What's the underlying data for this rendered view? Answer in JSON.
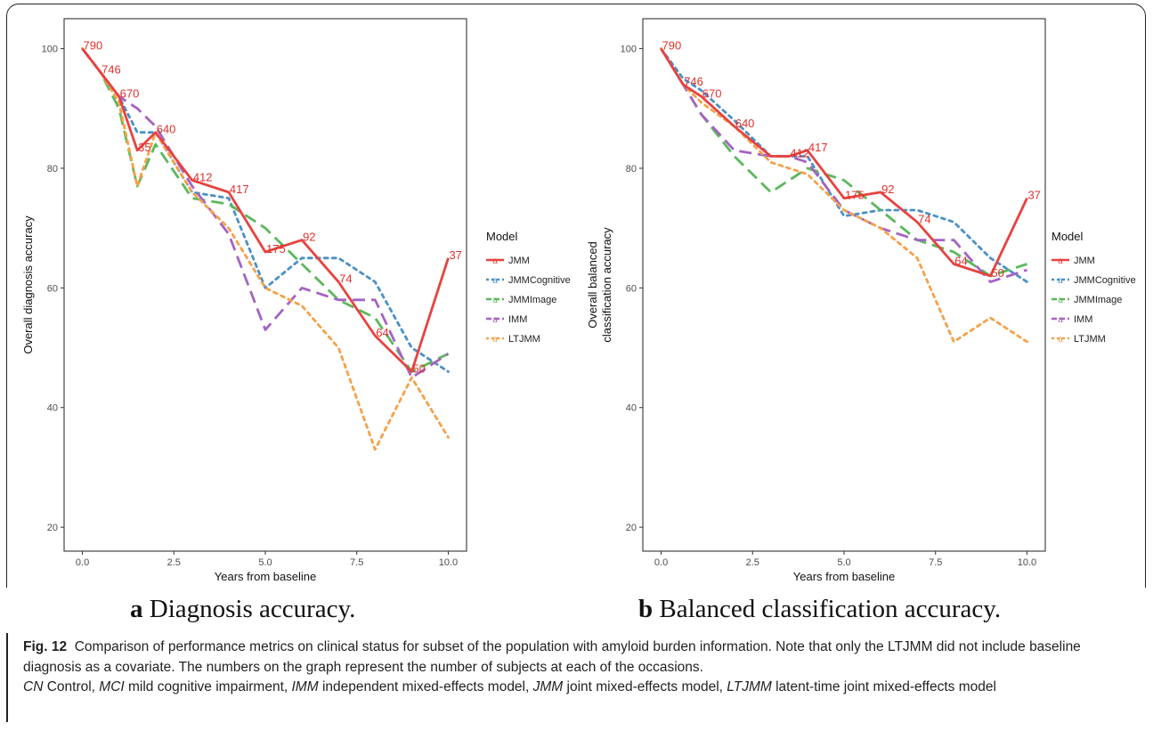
{
  "figure": {
    "number_label": "Fig. 12",
    "caption_text": "Comparison of performance metrics on clinical status for subset of the population with amyloid burden information. Note that only the LTJMM did not include baseline diagnosis as a covariate. The numbers on the graph represent the number of subjects at each of the occasions.",
    "abbreviations": [
      {
        "abbr": "CN",
        "text": " Control, "
      },
      {
        "abbr": "MCI",
        "text": " mild cognitive impairment, "
      },
      {
        "abbr": "IMM",
        "text": " independent mixed-effects model, "
      },
      {
        "abbr": "JMM",
        "text": " joint mixed-effects model, "
      },
      {
        "abbr": "LTJMM",
        "text": " latent-time joint mixed-effects model"
      }
    ]
  },
  "subcaptions": {
    "a": {
      "letter": "a",
      "text": " Diagnosis accuracy."
    },
    "b": {
      "letter": "b",
      "text": " Balanced classification accuracy."
    }
  },
  "legend": {
    "title": "Model",
    "key_glyph": "a"
  },
  "chart_data": [
    {
      "type": "line",
      "panel": "a",
      "xlabel": "Years from baseline",
      "ylabel": "Overall diagnosis accuracy",
      "xlim": [
        -0.5,
        10.5
      ],
      "ylim": [
        16,
        105
      ],
      "xticks": [
        0.0,
        2.5,
        5.0,
        7.5,
        10.0
      ],
      "xtick_labels": [
        "0.0",
        "2.5",
        "5.0",
        "7.5",
        "10.0"
      ],
      "yticks": [
        20,
        40,
        60,
        80,
        100
      ],
      "ytick_labels": [
        "20",
        "40",
        "60",
        "80",
        "100"
      ],
      "grid": false,
      "legend_position": "right",
      "series": [
        {
          "name": "JMM",
          "color": "#e8423f",
          "dash": "solid",
          "x": [
            0,
            0.5,
            1,
            1.5,
            2,
            3,
            4,
            5,
            6,
            7,
            8,
            9,
            10
          ],
          "y": [
            100,
            96,
            92,
            83,
            86,
            78,
            76,
            66,
            68,
            61,
            52,
            46,
            65
          ]
        },
        {
          "name": "JMMCognitive",
          "color": "#4a90c8",
          "dash": "dot",
          "x": [
            0,
            0.5,
            1,
            1.5,
            2,
            3,
            4,
            5,
            6,
            7,
            8,
            9,
            10
          ],
          "y": [
            100,
            96,
            92,
            86,
            86,
            76,
            75,
            60,
            65,
            65,
            61,
            50,
            46
          ]
        },
        {
          "name": "JMMImage",
          "color": "#5cb85c",
          "dash": "longdash",
          "x": [
            0,
            0.5,
            1,
            1.5,
            2,
            3,
            4,
            5,
            6,
            7,
            8,
            9,
            10
          ],
          "y": [
            100,
            96,
            90,
            77,
            84,
            75,
            74,
            70,
            64,
            58,
            55,
            46,
            49
          ]
        },
        {
          "name": "IMM",
          "color": "#a463c4",
          "dash": "longdash",
          "x": [
            0,
            0.5,
            1,
            1.5,
            2,
            3,
            4,
            5,
            6,
            7,
            8,
            9,
            10
          ],
          "y": [
            100,
            96,
            92,
            90,
            87,
            77,
            69,
            53,
            60,
            58,
            58,
            45,
            49
          ]
        },
        {
          "name": "LTJMM",
          "color": "#f5a14a",
          "dash": "dot",
          "x": [
            0,
            0.5,
            1,
            1.5,
            2,
            3,
            4,
            5,
            6,
            7,
            8,
            9,
            10
          ],
          "y": [
            100,
            96,
            91,
            77,
            86,
            76,
            70,
            60,
            57,
            50,
            33,
            45,
            35
          ]
        }
      ],
      "annotations": [
        {
          "x": 0,
          "y": 100,
          "label": "790"
        },
        {
          "x": 0.5,
          "y": 96,
          "label": "746"
        },
        {
          "x": 1,
          "y": 92,
          "label": "670"
        },
        {
          "x": 1.5,
          "y": 83,
          "label": "35"
        },
        {
          "x": 2,
          "y": 86,
          "label": "640"
        },
        {
          "x": 3,
          "y": 78,
          "label": "412"
        },
        {
          "x": 4,
          "y": 76,
          "label": "417"
        },
        {
          "x": 5,
          "y": 66,
          "label": "175"
        },
        {
          "x": 6,
          "y": 68,
          "label": "92"
        },
        {
          "x": 7,
          "y": 61,
          "label": "74"
        },
        {
          "x": 8,
          "y": 52,
          "label": "64"
        },
        {
          "x": 9,
          "y": 46,
          "label": "50"
        },
        {
          "x": 10,
          "y": 65,
          "label": "37"
        }
      ]
    },
    {
      "type": "line",
      "panel": "b",
      "xlabel": "Years from baseline",
      "ylabel": "Overall balanced classification accuracy",
      "xlim": [
        -0.5,
        10.5
      ],
      "ylim": [
        16,
        105
      ],
      "xticks": [
        0.0,
        2.5,
        5.0,
        7.5,
        10.0
      ],
      "xtick_labels": [
        "0.0",
        "2.5",
        "5.0",
        "7.5",
        "10.0"
      ],
      "yticks": [
        20,
        40,
        60,
        80,
        100
      ],
      "ytick_labels": [
        "20",
        "40",
        "60",
        "80",
        "100"
      ],
      "grid": false,
      "legend_position": "right",
      "series": [
        {
          "name": "JMM",
          "color": "#e8423f",
          "dash": "solid",
          "x": [
            0,
            0.6,
            1.1,
            2,
            3,
            3.5,
            4,
            5,
            6,
            7,
            8,
            9,
            10
          ],
          "y": [
            100,
            94,
            92,
            87,
            82,
            82,
            83,
            75,
            76,
            71,
            64,
            62,
            75
          ]
        },
        {
          "name": "JMMCognitive",
          "color": "#4a90c8",
          "dash": "dot",
          "x": [
            0,
            0.6,
            1.1,
            2,
            3,
            3.5,
            4,
            5,
            6,
            7,
            8,
            9,
            10
          ],
          "y": [
            100,
            95,
            93,
            88,
            82,
            82,
            82,
            72,
            73,
            73,
            71,
            65,
            61
          ]
        },
        {
          "name": "JMMImage",
          "color": "#5cb85c",
          "dash": "longdash",
          "x": [
            0,
            0.6,
            1.1,
            2,
            3,
            3.5,
            4,
            5,
            6,
            7,
            8,
            9,
            10
          ],
          "y": [
            100,
            94,
            89,
            82,
            76,
            78,
            80,
            78,
            73,
            68,
            66,
            62,
            64
          ]
        },
        {
          "name": "IMM",
          "color": "#a463c4",
          "dash": "longdash",
          "x": [
            0,
            0.6,
            1.1,
            2,
            3,
            3.5,
            4,
            5,
            6,
            7,
            8,
            9,
            10
          ],
          "y": [
            100,
            94,
            89,
            83,
            82,
            82,
            81,
            73,
            70,
            68,
            68,
            61,
            63
          ]
        },
        {
          "name": "LTJMM",
          "color": "#f5a14a",
          "dash": "dot",
          "x": [
            0,
            0.6,
            1.1,
            2,
            3,
            3.5,
            4,
            5,
            6,
            7,
            8,
            9,
            10
          ],
          "y": [
            100,
            94,
            91,
            87,
            81,
            80,
            79,
            73,
            70,
            65,
            51,
            55,
            51
          ]
        }
      ],
      "annotations": [
        {
          "x": 0,
          "y": 100,
          "label": "790"
        },
        {
          "x": 0.6,
          "y": 94,
          "label": "746"
        },
        {
          "x": 1.1,
          "y": 92,
          "label": "670"
        },
        {
          "x": 2,
          "y": 87,
          "label": "640"
        },
        {
          "x": 3.5,
          "y": 82,
          "label": "412"
        },
        {
          "x": 4,
          "y": 83,
          "label": "417"
        },
        {
          "x": 5,
          "y": 75,
          "label": "175"
        },
        {
          "x": 6,
          "y": 76,
          "label": "92"
        },
        {
          "x": 7,
          "y": 71,
          "label": "74"
        },
        {
          "x": 8,
          "y": 64,
          "label": "64"
        },
        {
          "x": 9,
          "y": 62,
          "label": "50"
        },
        {
          "x": 10,
          "y": 75,
          "label": "37"
        }
      ]
    }
  ]
}
